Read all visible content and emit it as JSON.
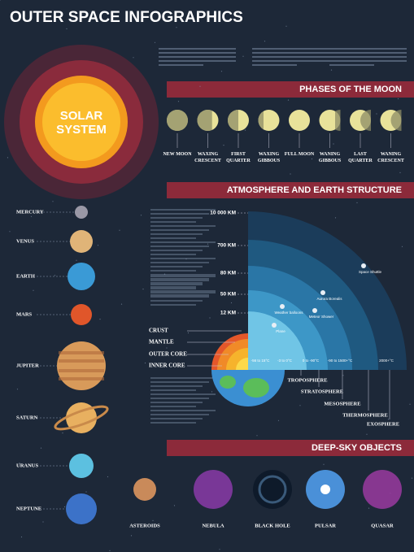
{
  "title": "OUTER SPACE INFOGRAPHICS",
  "solar_system": [
    "SOLAR",
    "SYSTEM"
  ],
  "moon": {
    "title": "PHASES OF THE MOON",
    "phases": [
      "NEW MOON",
      "WAXING CRESCENT",
      "FIRST QUARTER",
      "WAXING GIBBOUS",
      "FULL MOON",
      "WANING GIBBOUS",
      "LAST QUARTER",
      "WANING CRESCENT"
    ]
  },
  "atmosphere": {
    "title": "ATMOSPHERE AND EARTH STRUCTURE",
    "altitudes": [
      "10 000 KM",
      "700 KM",
      "80 KM",
      "50 KM",
      "12 KM"
    ],
    "earth_layers": [
      "CRUST",
      "MANTLE",
      "OUTER CORE",
      "INNER CORE"
    ],
    "layers": [
      "TROPOSPHERE",
      "STRATOSPHERE",
      "MESOSPHERE",
      "THERMOSPHERE",
      "EXOSPHERE"
    ],
    "temperatures": [
      "-56 to 15°C",
      "-3 to 0°C",
      "0 to -90°C",
      "-90 to 1500+°C",
      "2000+°C"
    ],
    "objects": [
      "Space Shuttle",
      "Aurora Borealis",
      "Meteor Shower",
      "Weather balloons",
      "Plane"
    ]
  },
  "planets": [
    "MERCURY",
    "VENUS",
    "EARTH",
    "MARS",
    "JUPITER",
    "SATURN",
    "URANUS",
    "NEPTUNE"
  ],
  "deep_sky": {
    "title": "DEEP-SKY OBJECTS",
    "objects": [
      "ASTEROIDS",
      "NEBULA",
      "BLACK HOLE",
      "PULSAR",
      "QUASAR"
    ]
  }
}
